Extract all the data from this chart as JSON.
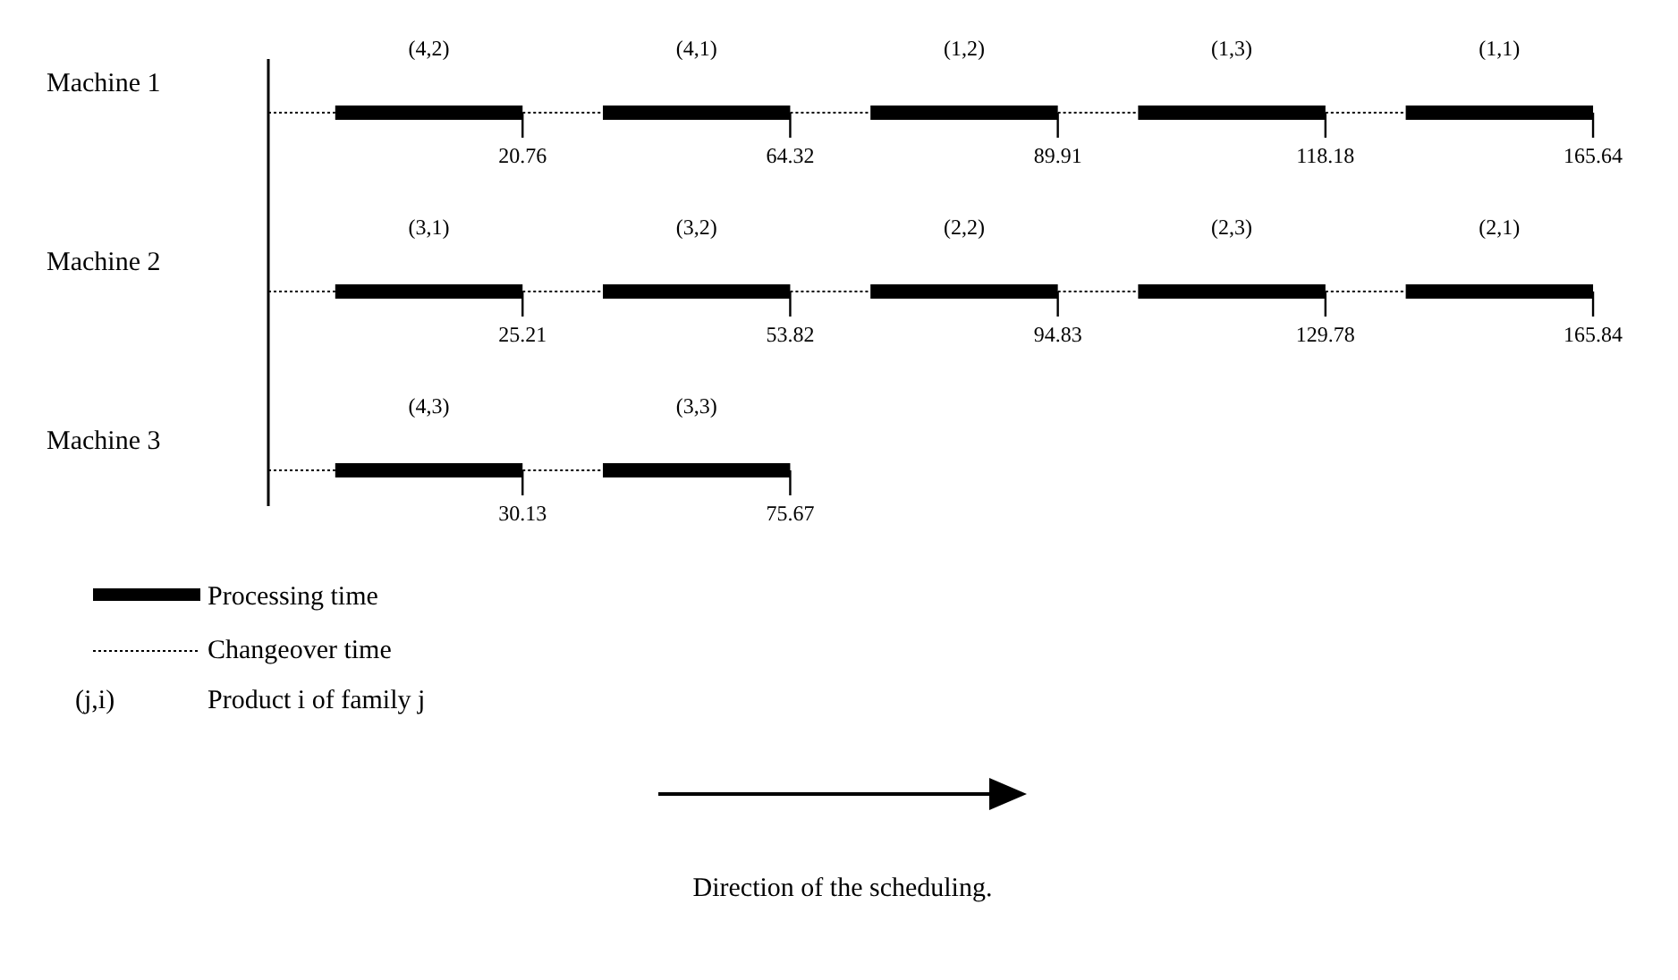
{
  "chart_data": {
    "type": "other",
    "categories": [
      "Machine 1",
      "Machine 2",
      "Machine 3"
    ],
    "series": [
      {
        "color": "#000000",
        "values": [
          20.76,
          25.21,
          30.13
        ]
      },
      {
        "color": "#000000",
        "values": [
          64.32,
          53.82,
          75.67
        ]
      },
      {
        "color": "#000000",
        "values": [
          89.91,
          94.83,
          null
        ]
      },
      {
        "color": "#000000",
        "values": [
          118.18,
          129.78,
          null
        ]
      },
      {
        "color": "#000000",
        "values": [
          165.64,
          165.84,
          null
        ]
      }
    ],
    "data_labels": true,
    "annotations": [
      "(4,2)",
      "(4,1)",
      "(1,2)",
      "(1,3)",
      "(1,1)",
      "(3,1)",
      "(3,2)",
      "(2,2)",
      "(2,3)",
      "(2,1)",
      "(4,3)",
      "(3,3)",
      "Processing time",
      "Changeover time",
      "(j,i)",
      "Product i of family j",
      "Direction of the scheduling."
    ]
  }
}
